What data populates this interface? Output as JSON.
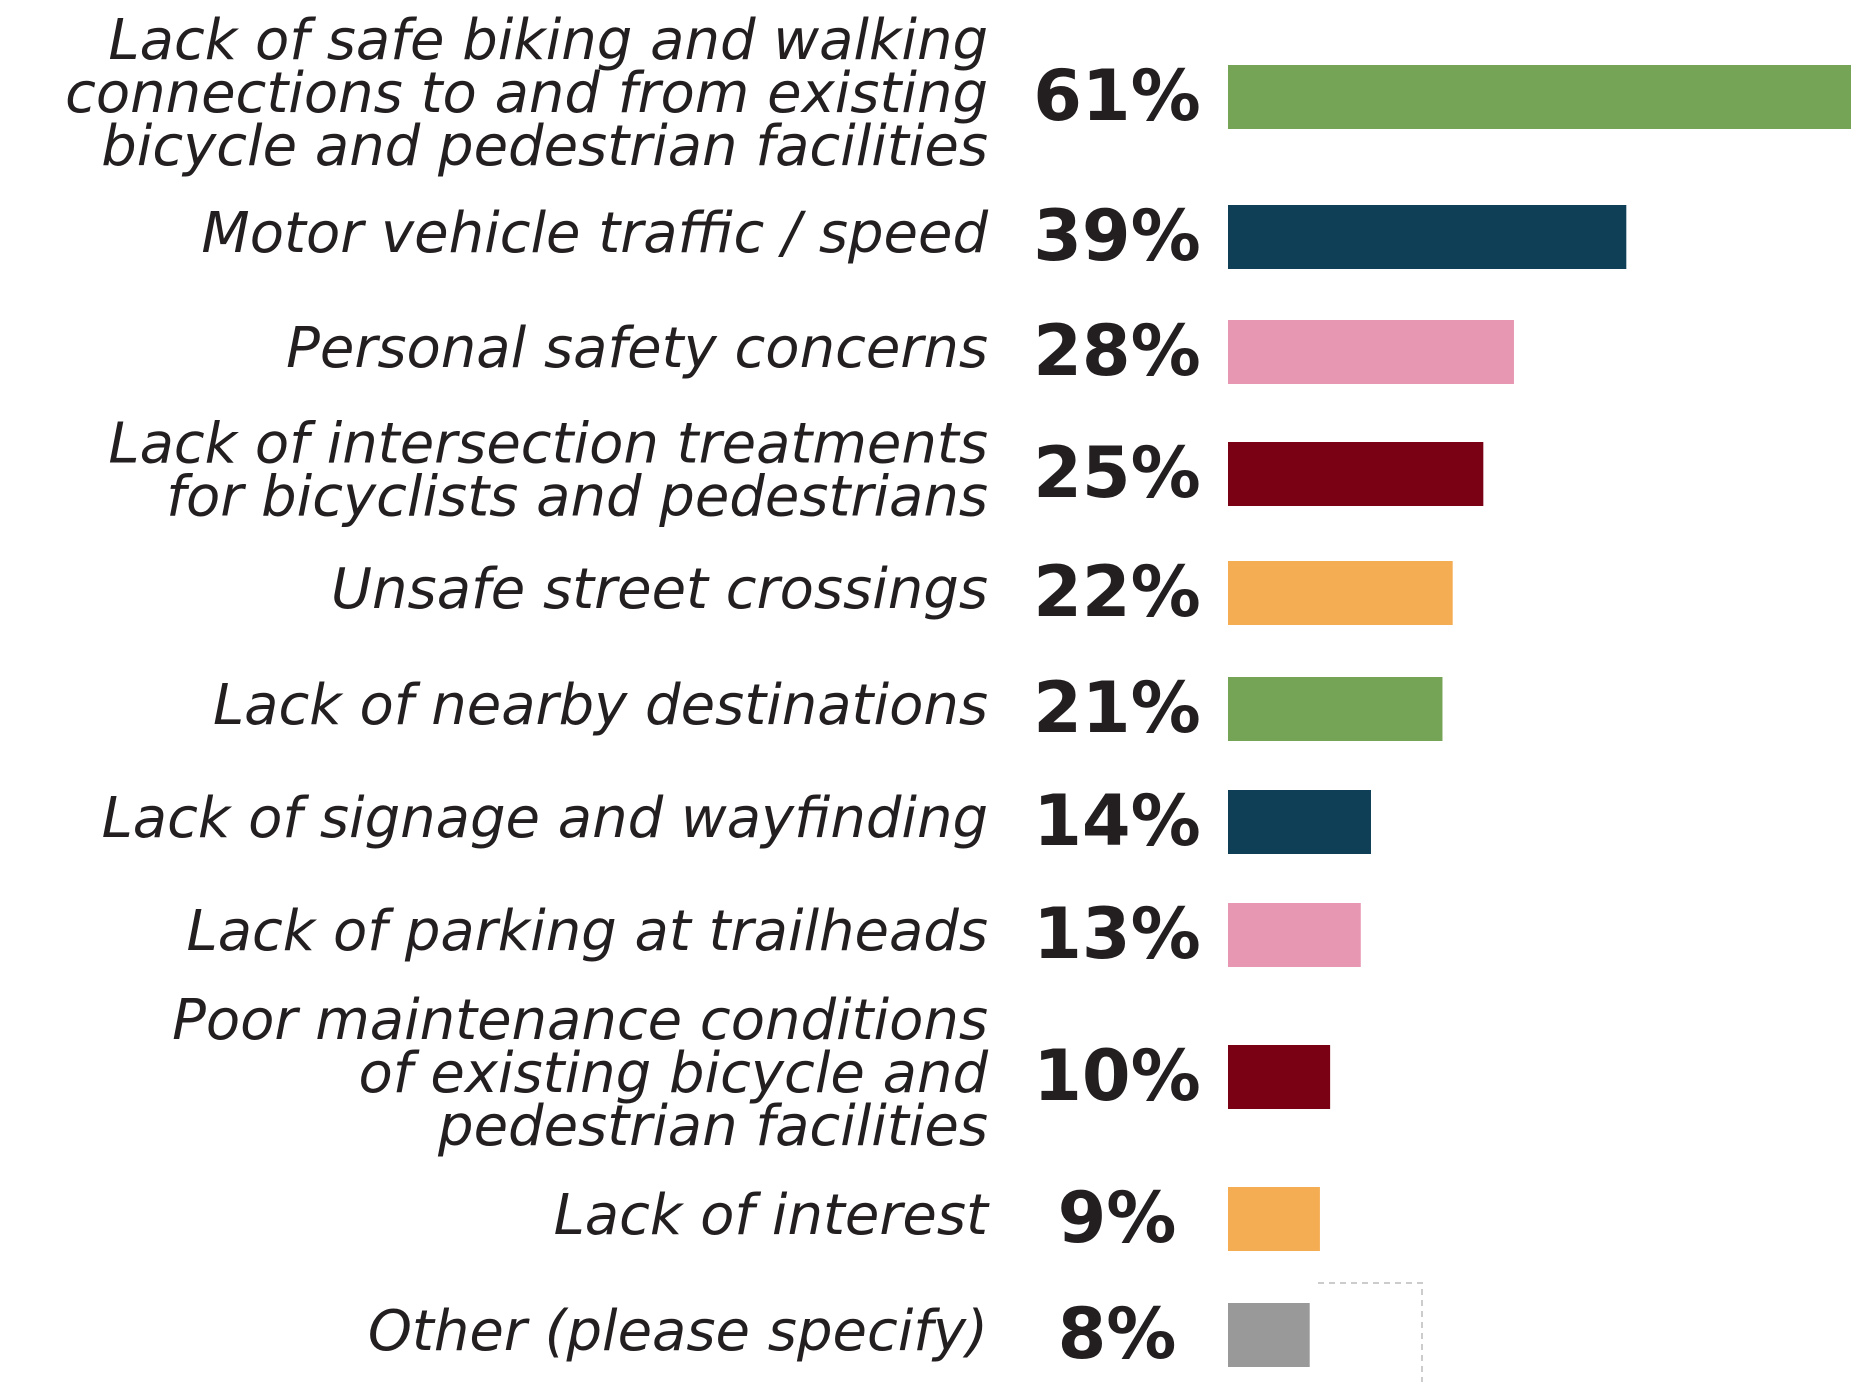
{
  "chart_data": {
    "type": "bar",
    "orientation": "horizontal",
    "categories": [
      [
        "Lack of safe biking and walking",
        "connections to and from existing",
        "bicycle and pedestrian facilities"
      ],
      [
        "Motor vehicle traffic / speed"
      ],
      [
        "Personal safety concerns"
      ],
      [
        "Lack of intersection treatments",
        "for bicyclists and pedestrians"
      ],
      [
        "Unsafe street crossings"
      ],
      [
        "Lack of nearby destinations"
      ],
      [
        "Lack of signage and wayfinding"
      ],
      [
        "Lack of parking at trailheads"
      ],
      [
        "Poor maintenance conditions",
        "of existing bicycle and",
        "pedestrian facilities"
      ],
      [
        "Lack of interest"
      ],
      [
        "Other (please specify)"
      ]
    ],
    "values": [
      61,
      39,
      28,
      25,
      22,
      21,
      14,
      13,
      10,
      9,
      8
    ],
    "value_labels": [
      "61%",
      "39%",
      "28%",
      "25%",
      "22%",
      "21%",
      "14%",
      "13%",
      "10%",
      "9%",
      "8%"
    ],
    "colors": [
      "#76a456",
      "#0f3f56",
      "#e897b3",
      "#7a0014",
      "#f5ad53",
      "#76a456",
      "#0f3f56",
      "#e897b3",
      "#7a0014",
      "#f5ad53",
      "#999999"
    ]
  }
}
